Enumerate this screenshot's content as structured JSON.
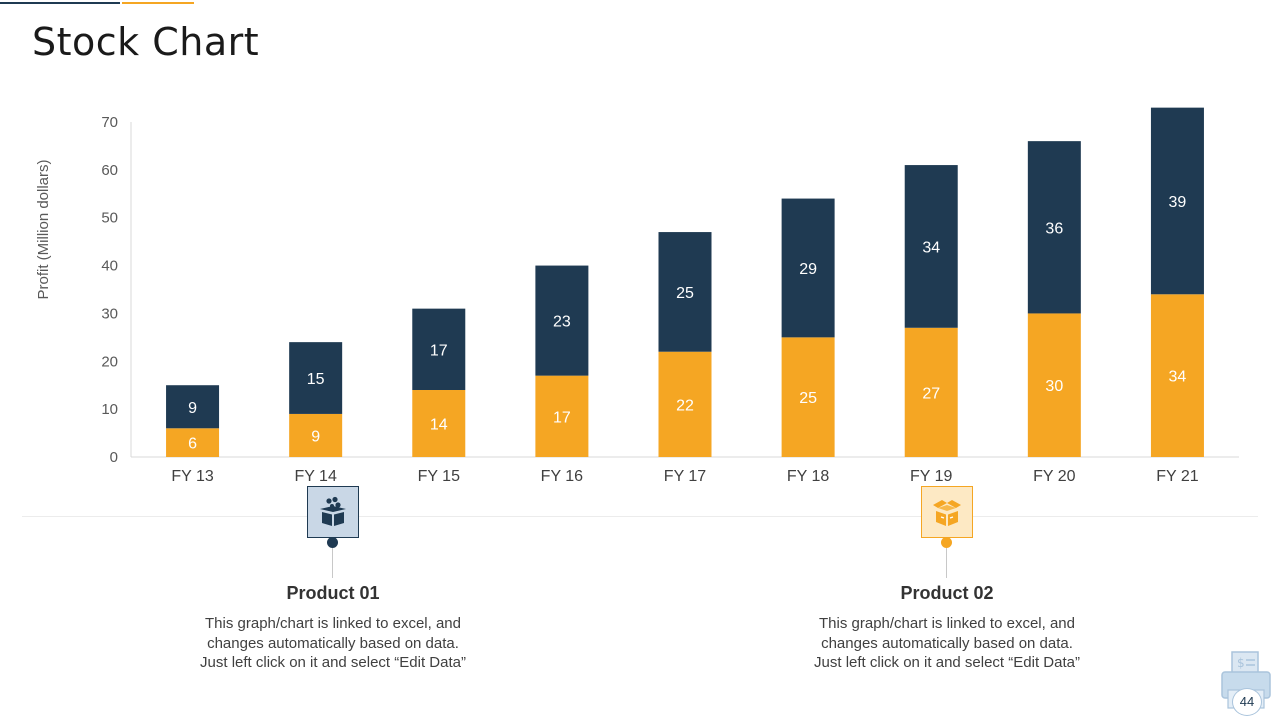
{
  "page": {
    "title": "Stock Chart",
    "page_number": "44"
  },
  "colors": {
    "dark": "#1f3a52",
    "accent": "#f5a623",
    "grid": "#d9d9d9",
    "axis_text": "#595959"
  },
  "chart_data": {
    "type": "bar",
    "stacked": true,
    "title": "",
    "xlabel": "",
    "ylabel": "Profit  (Million dollars)",
    "ylim": [
      0,
      70
    ],
    "yticks": [
      0,
      10,
      20,
      30,
      40,
      50,
      60,
      70
    ],
    "categories": [
      "FY 13",
      "FY 14",
      "FY 15",
      "FY 16",
      "FY 17",
      "FY 18",
      "FY 19",
      "FY 20",
      "FY 21"
    ],
    "series": [
      {
        "name": "Product 02",
        "color": "#f5a623",
        "values": [
          6,
          9,
          14,
          17,
          22,
          25,
          27,
          30,
          34
        ]
      },
      {
        "name": "Product 01",
        "color": "#1f3a52",
        "values": [
          9,
          15,
          17,
          23,
          25,
          29,
          34,
          36,
          39
        ]
      }
    ],
    "legend": "none"
  },
  "products": [
    {
      "name": "Product 01",
      "icon": "box-with-items-icon",
      "desc": [
        "This graph/chart is linked to excel, and",
        "changes automatically based on data.",
        "Just left click on it and select “Edit Data”"
      ]
    },
    {
      "name": "Product 02",
      "icon": "open-package-icon",
      "desc": [
        "This graph/chart is linked to excel, and",
        "changes automatically based on data.",
        "Just left click on it and select “Edit Data”"
      ]
    }
  ]
}
